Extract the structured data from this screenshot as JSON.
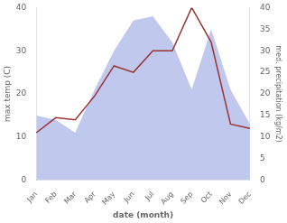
{
  "chart_data": {
    "type": "line",
    "xlabel": "date (month)",
    "ylabel": "max temp (C)",
    "y2label": "med. precipitation (kg/m2)",
    "categories": [
      "Jan",
      "Feb",
      "Mar",
      "Apr",
      "May",
      "Jun",
      "Jul",
      "Aug",
      "Sep",
      "Oct",
      "Nov",
      "Dec"
    ],
    "series": [
      {
        "type": "area",
        "color": "#c0c8ee",
        "axis": "y2",
        "values": [
          15,
          14,
          11,
          21,
          30,
          37,
          38,
          32,
          21,
          35,
          21,
          13
        ]
      },
      {
        "type": "line",
        "color": "#993333",
        "values": [
          11,
          14.5,
          14,
          19.5,
          26.5,
          25,
          30,
          30,
          40,
          32,
          13,
          12
        ]
      }
    ],
    "ylim": [
      0,
      40
    ],
    "yticks": [
      0,
      10,
      20,
      30,
      40
    ],
    "y2lim": [
      0,
      40
    ],
    "y2ticks": [
      0,
      5,
      10,
      15,
      20,
      25,
      30,
      35,
      40
    ],
    "grid": false
  }
}
